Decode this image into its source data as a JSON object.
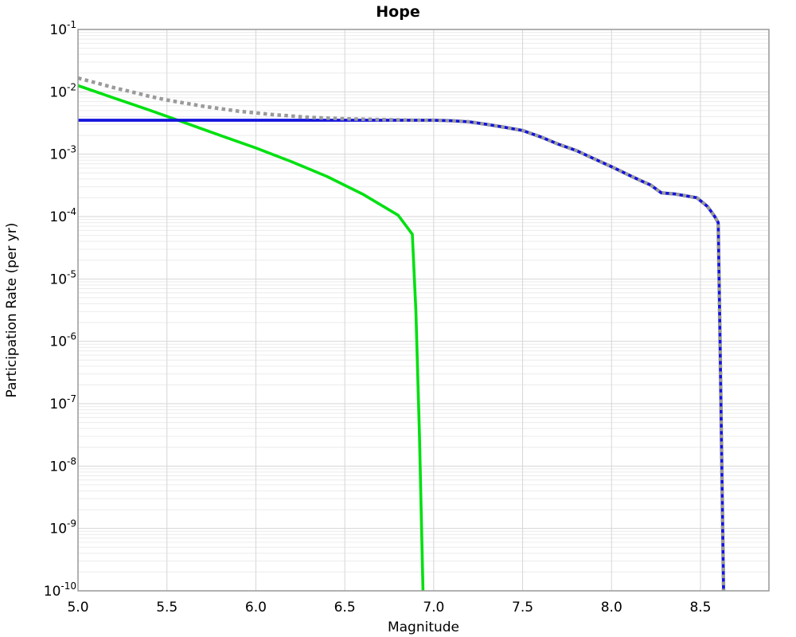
{
  "chart_data": {
    "type": "line",
    "title": "Hope",
    "xlabel": "Magnitude",
    "ylabel": "Participation Rate (per yr)",
    "x_scale": "linear",
    "y_scale": "log",
    "xlim": [
      5.0,
      8.885
    ],
    "ylim": [
      1e-10,
      0.1
    ],
    "x_ticks": [
      5.0,
      5.5,
      6.0,
      6.5,
      7.0,
      7.5,
      8.0,
      8.5
    ],
    "x_tick_labels": [
      "5.0",
      "5.5",
      "6.0",
      "6.5",
      "7.0",
      "7.5",
      "8.0",
      "8.5"
    ],
    "y_tick_exponents": [
      -1,
      -2,
      -3,
      -4,
      -5,
      -6,
      -7,
      -8,
      -9,
      -10
    ],
    "grid": {
      "major": true,
      "minor_y": true,
      "minor_x": false
    },
    "legend": "none",
    "colors": {
      "grid_major": "#d6d6d6",
      "grid_minor": "#ececec",
      "frame": "#999999",
      "text": "#000000",
      "background": "#ffffff"
    },
    "series": [
      {
        "name": "green-curve",
        "color": "#00e010",
        "style": "solid",
        "width": 3.6,
        "points": [
          [
            5.0,
            0.0126
          ],
          [
            5.2,
            0.008
          ],
          [
            5.4,
            0.0051
          ],
          [
            5.6,
            0.0032
          ],
          [
            5.8,
            0.002
          ],
          [
            6.0,
            0.00126
          ],
          [
            6.2,
            0.00076
          ],
          [
            6.4,
            0.00044
          ],
          [
            6.6,
            0.00023
          ],
          [
            6.8,
            0.000105
          ],
          [
            6.88,
            5.2e-05
          ],
          [
            6.9,
            3e-06
          ],
          [
            6.92,
            3e-08
          ],
          [
            6.94,
            1e-10
          ]
        ]
      },
      {
        "name": "blue-curve",
        "color": "#1414dc",
        "style": "solid",
        "width": 3.8,
        "points": [
          [
            5.0,
            0.0035
          ],
          [
            7.0,
            0.0035
          ],
          [
            7.1,
            0.00344
          ],
          [
            7.2,
            0.0033
          ],
          [
            7.3,
            0.003
          ],
          [
            7.4,
            0.0027
          ],
          [
            7.5,
            0.0024
          ],
          [
            7.6,
            0.0019
          ],
          [
            7.7,
            0.00145
          ],
          [
            7.8,
            0.00115
          ],
          [
            7.9,
            0.00085
          ],
          [
            8.0,
            0.00063
          ],
          [
            8.1,
            0.00046
          ],
          [
            8.17,
            0.00037
          ],
          [
            8.22,
            0.00032
          ],
          [
            8.28,
            0.00024
          ],
          [
            8.36,
            0.00023
          ],
          [
            8.48,
            0.0002
          ],
          [
            8.54,
            0.000145
          ],
          [
            8.58,
            0.0001
          ],
          [
            8.6,
            8e-05
          ],
          [
            8.61,
            1e-06
          ],
          [
            8.62,
            1e-08
          ],
          [
            8.63,
            1e-10
          ]
        ]
      },
      {
        "name": "gray-dotted-curve",
        "color": "#9a9a9a",
        "style": "dotted",
        "width": 4.5,
        "points": [
          [
            5.0,
            0.0166
          ],
          [
            5.1,
            0.014
          ],
          [
            5.2,
            0.0117
          ],
          [
            5.3,
            0.01
          ],
          [
            5.4,
            0.0085
          ],
          [
            5.5,
            0.0074
          ],
          [
            5.7,
            0.0059
          ],
          [
            5.9,
            0.0049
          ],
          [
            6.1,
            0.0043
          ],
          [
            6.3,
            0.0039
          ],
          [
            6.5,
            0.0037
          ],
          [
            6.7,
            0.0036
          ],
          [
            6.9,
            0.0035
          ],
          [
            7.0,
            0.0035
          ],
          [
            7.1,
            0.00344
          ],
          [
            7.2,
            0.0033
          ],
          [
            7.3,
            0.003
          ],
          [
            7.4,
            0.0027
          ],
          [
            7.5,
            0.0024
          ],
          [
            7.6,
            0.0019
          ],
          [
            7.7,
            0.00145
          ],
          [
            7.8,
            0.00115
          ],
          [
            7.9,
            0.00085
          ],
          [
            8.0,
            0.00063
          ],
          [
            8.1,
            0.00046
          ],
          [
            8.17,
            0.00037
          ],
          [
            8.22,
            0.00032
          ],
          [
            8.28,
            0.00024
          ],
          [
            8.36,
            0.00023
          ],
          [
            8.48,
            0.0002
          ],
          [
            8.54,
            0.000145
          ],
          [
            8.58,
            0.0001
          ],
          [
            8.6,
            8e-05
          ],
          [
            8.61,
            1e-06
          ],
          [
            8.62,
            1e-08
          ],
          [
            8.63,
            1e-10
          ]
        ]
      }
    ]
  }
}
